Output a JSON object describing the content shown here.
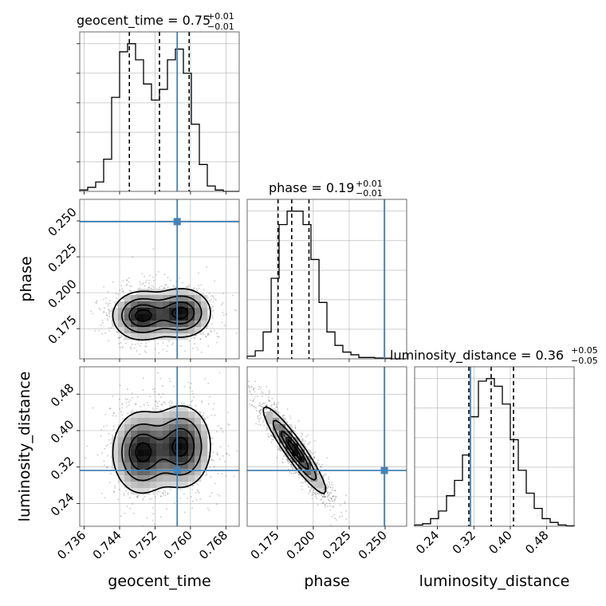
{
  "chart_data": {
    "type": "scatter",
    "subtype": "corner-plot",
    "colors": {
      "truth": "#4682b4",
      "hist": "#000000",
      "grid": "#b0b0b0",
      "quantile": "#000000"
    },
    "parameters": [
      {
        "name": "geocent_time",
        "label": "geocent_time",
        "title_main": "geocent_time = 0.75",
        "title_sup": "+0.01",
        "title_sub": "−0.01",
        "range": [
          0.735,
          0.771
        ],
        "ticks": [
          0.736,
          0.744,
          0.752,
          0.76,
          0.768
        ],
        "tick_labels": [
          "0.736",
          "0.744",
          "0.752",
          "0.760",
          "0.768"
        ],
        "truth": 0.757,
        "quantiles": [
          0.7462,
          0.753,
          0.7597
        ],
        "hist_edges": [
          0.735,
          0.7368,
          0.7386,
          0.7404,
          0.7422,
          0.744,
          0.7458,
          0.7476,
          0.7494,
          0.7512,
          0.753,
          0.7548,
          0.7566,
          0.7584,
          0.7602,
          0.762,
          0.7638,
          0.7656,
          0.7674,
          0.7692,
          0.771
        ],
        "hist_counts": [
          0.5,
          1.5,
          3.5,
          12,
          35,
          52,
          55,
          49,
          40,
          34,
          38,
          49,
          53,
          44,
          25,
          10,
          2,
          0.5,
          0,
          0
        ]
      },
      {
        "name": "phase",
        "label": "phase",
        "title_main": "phase = 0.19",
        "title_sup": "+0.01",
        "title_sub": "−0.01",
        "range": [
          0.154,
          0.265
        ],
        "ticks": [
          0.175,
          0.2,
          0.225,
          0.25
        ],
        "tick_labels": [
          "0.175",
          "0.200",
          "0.225",
          "0.250"
        ],
        "truth": 0.2495,
        "quantiles": [
          0.1755,
          0.185,
          0.197
        ],
        "hist_edges": [
          0.154,
          0.1596,
          0.1651,
          0.1707,
          0.1762,
          0.1818,
          0.1873,
          0.1929,
          0.1984,
          0.204,
          0.2095,
          0.2151,
          0.2206,
          0.2262,
          0.2317,
          0.2373,
          0.2428,
          0.2484,
          0.2539,
          0.2595,
          0.265
        ],
        "hist_counts": [
          1,
          3,
          10,
          30,
          50,
          55,
          55,
          50,
          37,
          21,
          10,
          5,
          2.5,
          1.5,
          0.5,
          0.5,
          0.3,
          0.2,
          0,
          0
        ],
        "y_ticks": [
          0.175,
          0.2,
          0.225,
          0.25
        ],
        "y_tick_labels": [
          "0.175",
          "0.200",
          "0.225",
          "0.250"
        ]
      },
      {
        "name": "luminosity_distance",
        "label": "luminosity_distance",
        "title_main": "luminosity_distance = 0.36",
        "title_sup": "+0.05",
        "title_sub": "−0.05",
        "range": [
          0.19,
          0.54
        ],
        "ticks": [
          0.24,
          0.32,
          0.4,
          0.48
        ],
        "tick_labels": [
          "0.24",
          "0.32",
          "0.40",
          "0.48"
        ],
        "truth": 0.3125,
        "quantiles": [
          0.309,
          0.358,
          0.407
        ],
        "hist_edges": [
          0.19,
          0.2075,
          0.225,
          0.2425,
          0.26,
          0.2775,
          0.295,
          0.3125,
          0.33,
          0.3475,
          0.365,
          0.3825,
          0.4,
          0.4175,
          0.435,
          0.4525,
          0.47,
          0.4875,
          0.505,
          0.5225,
          0.54
        ],
        "hist_counts": [
          0.5,
          1,
          3,
          6,
          12,
          18,
          28,
          43,
          57,
          58,
          55,
          48,
          34,
          22,
          13,
          7,
          3,
          1.5,
          0.5,
          0.2
        ],
        "y_ticks": [
          0.24,
          0.32,
          0.4,
          0.48
        ],
        "y_tick_labels": [
          "0.24",
          "0.32",
          "0.40",
          "0.48"
        ]
      }
    ],
    "joint": [
      {
        "x": "geocent_time",
        "y": "phase",
        "modes": [
          {
            "x": 0.749,
            "y": 0.184,
            "sx": 0.0033,
            "sy": 0.0085
          },
          {
            "x": 0.758,
            "y": 0.186,
            "sx": 0.0033,
            "sy": 0.0085
          }
        ]
      },
      {
        "x": "geocent_time",
        "y": "luminosity_distance",
        "modes": [
          {
            "x": 0.749,
            "y": 0.352,
            "sx": 0.0033,
            "sy": 0.045
          },
          {
            "x": 0.758,
            "y": 0.365,
            "sx": 0.0033,
            "sy": 0.045
          }
        ]
      },
      {
        "x": "phase",
        "y": "luminosity_distance",
        "modes": [
          {
            "x": 0.187,
            "y": 0.357,
            "sx": 0.011,
            "sy": 0.048,
            "rho": -0.93
          }
        ]
      }
    ]
  }
}
